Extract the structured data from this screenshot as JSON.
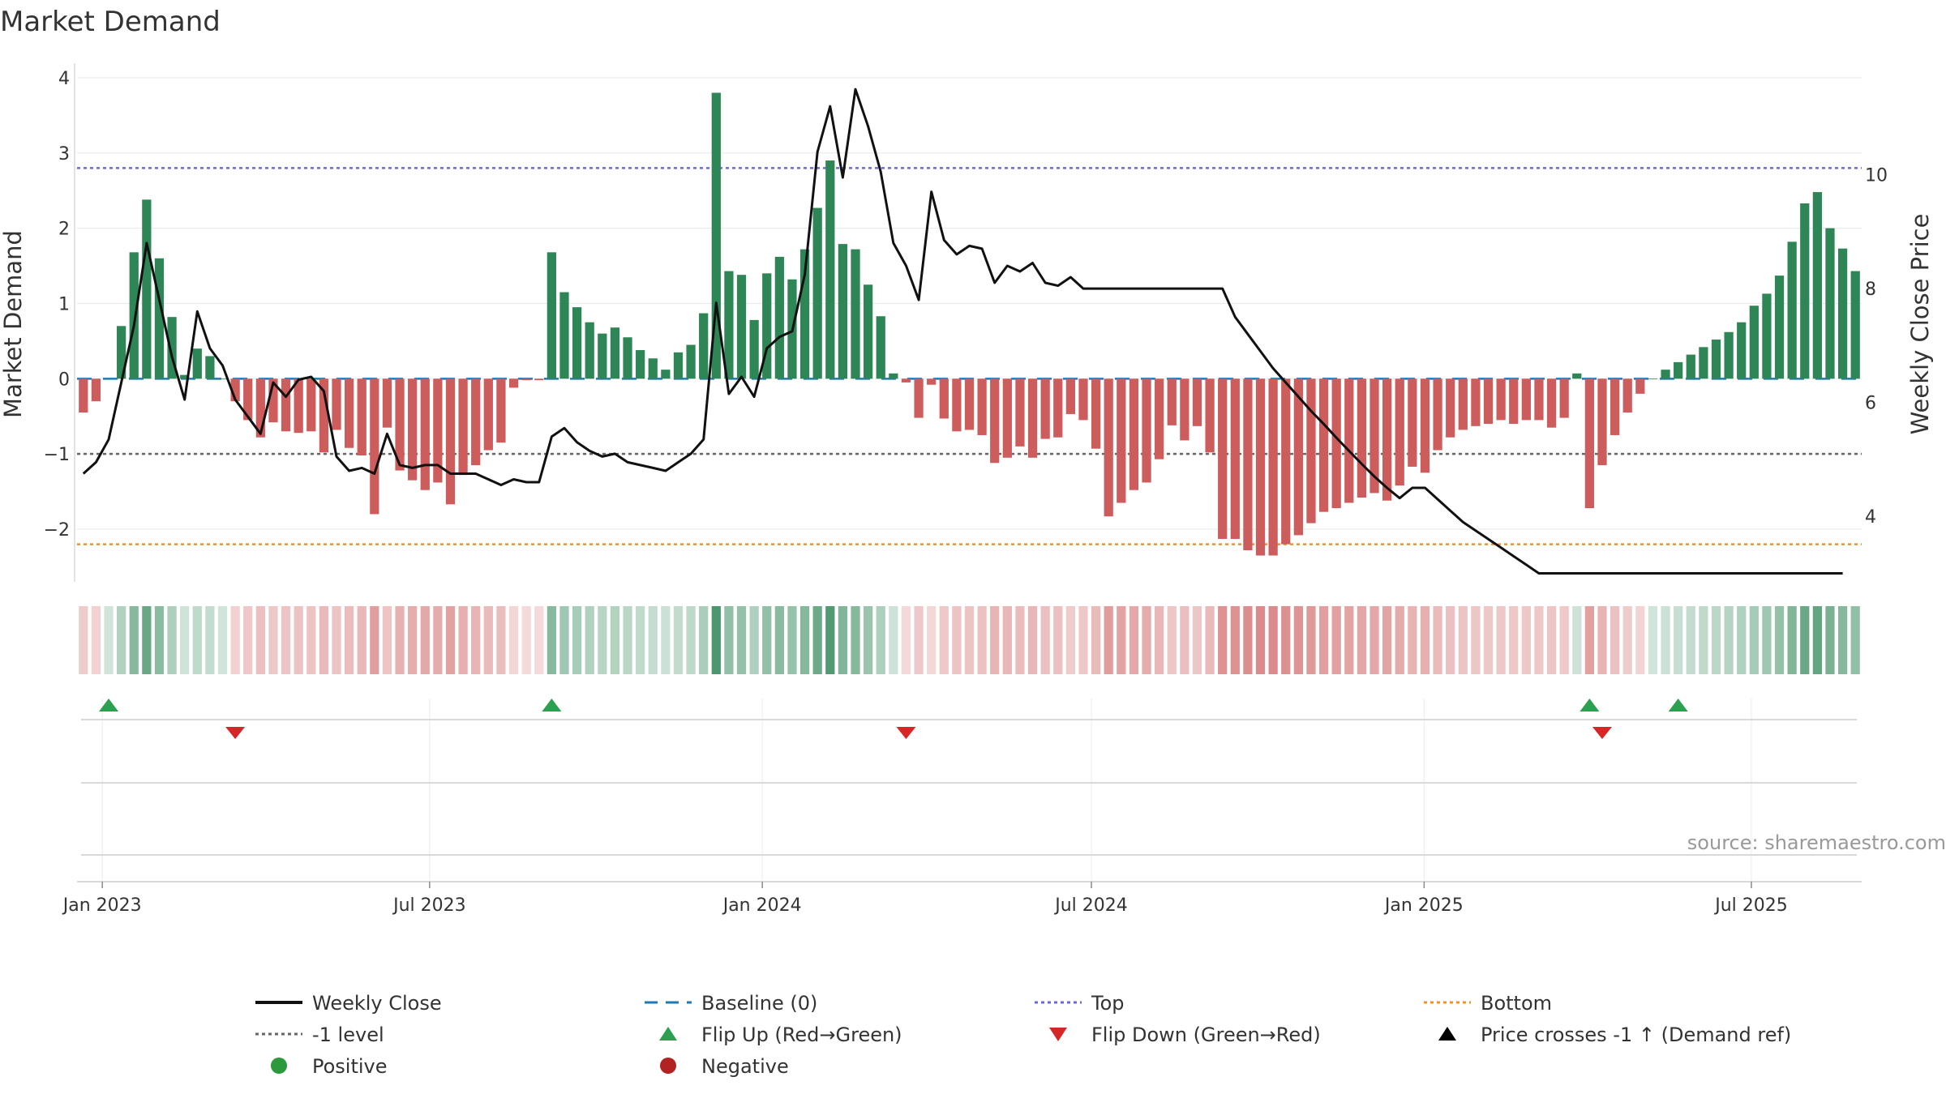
{
  "chart_data": {
    "type": "bar",
    "title": "Market Demand",
    "ylabel": "Market Demand",
    "y2label": "Weekly Close Price",
    "source": "source: sharemaestro.com",
    "start_date": "2022-12-18",
    "ylim": [
      -2.7,
      4.15
    ],
    "y2lim": [
      2.85,
      11.9
    ],
    "yticks": [
      {
        "v": 4,
        "label": "4"
      },
      {
        "v": 3,
        "label": "3"
      },
      {
        "v": 2,
        "label": "2"
      },
      {
        "v": 1,
        "label": "1"
      },
      {
        "v": 0,
        "label": "0"
      },
      {
        "v": -1,
        "label": "−1"
      },
      {
        "v": -2,
        "label": "−2"
      }
    ],
    "y2ticks": [
      {
        "v": 10,
        "label": "10"
      },
      {
        "v": 8,
        "label": "8"
      },
      {
        "v": 6,
        "label": "6"
      },
      {
        "v": 4,
        "label": "4"
      }
    ],
    "xticks": [
      {
        "date": "2023-01-01",
        "label": "Jan 2023"
      },
      {
        "date": "2023-07-01",
        "label": "Jul 2023"
      },
      {
        "date": "2024-01-01",
        "label": "Jan 2024"
      },
      {
        "date": "2024-07-01",
        "label": "Jul 2024"
      },
      {
        "date": "2025-01-01",
        "label": "Jan 2025"
      },
      {
        "date": "2025-07-01",
        "label": "Jul 2025"
      }
    ],
    "reference_lines": {
      "top": 2.8,
      "bottom": -2.2,
      "minus_one": -1,
      "baseline": 0
    },
    "demand": [
      -0.45,
      -0.3,
      0,
      0.7,
      1.68,
      2.38,
      1.6,
      0.82,
      0.05,
      0.4,
      0.3,
      0,
      -0.3,
      -0.55,
      -0.78,
      -0.58,
      -0.7,
      -0.72,
      -0.7,
      -0.98,
      -0.68,
      -0.92,
      -1.02,
      -1.8,
      -0.65,
      -1.22,
      -1.35,
      -1.48,
      -1.38,
      -1.67,
      -1.28,
      -1.15,
      -0.95,
      -0.85,
      -0.12,
      -0.02,
      -0.02,
      1.68,
      1.15,
      0.95,
      0.75,
      0.6,
      0.68,
      0.55,
      0.38,
      0.27,
      0.12,
      0.35,
      0.45,
      0.87,
      3.8,
      1.43,
      1.38,
      0.78,
      1.4,
      1.62,
      1.32,
      1.72,
      2.27,
      2.9,
      1.79,
      1.72,
      1.25,
      0.83,
      0.07,
      -0.05,
      -0.52,
      -0.08,
      -0.53,
      -0.7,
      -0.68,
      -0.75,
      -1.12,
      -1.05,
      -0.9,
      -1.05,
      -0.8,
      -0.78,
      -0.47,
      -0.55,
      -0.93,
      -1.83,
      -1.65,
      -1.48,
      -1.38,
      -1.07,
      -0.62,
      -0.82,
      -0.63,
      -0.98,
      -2.13,
      -2.13,
      -2.28,
      -2.35,
      -2.35,
      -2.2,
      -2.08,
      -1.92,
      -1.77,
      -1.72,
      -1.65,
      -1.58,
      -1.52,
      -1.62,
      -1.42,
      -1.17,
      -1.25,
      -0.95,
      -0.78,
      -0.68,
      -0.63,
      -0.6,
      -0.55,
      -0.6,
      -0.55,
      -0.55,
      -0.65,
      -0.52,
      0.07,
      -1.72,
      -1.15,
      -0.75,
      -0.45,
      -0.2,
      0,
      0.12,
      0.22,
      0.32,
      0.42,
      0.52,
      0.62,
      0.75,
      0.97,
      1.13,
      1.37,
      1.82,
      2.33,
      2.48,
      2.0,
      1.73,
      1.43
    ],
    "weekly_close": [
      {
        "w": 0,
        "v": 4.75
      },
      {
        "w": 1,
        "v": 4.95
      },
      {
        "w": 2,
        "v": 5.35
      },
      {
        "w": 3,
        "v": 6.35
      },
      {
        "w": 4,
        "v": 7.35
      },
      {
        "w": 5,
        "v": 8.8
      },
      {
        "w": 6,
        "v": 7.8
      },
      {
        "w": 7,
        "v": 6.8
      },
      {
        "w": 8,
        "v": 6.05
      },
      {
        "w": 9,
        "v": 7.6
      },
      {
        "w": 10,
        "v": 6.95
      },
      {
        "w": 11,
        "v": 6.65
      },
      {
        "w": 12,
        "v": 6.05
      },
      {
        "w": 13,
        "v": 5.75
      },
      {
        "w": 14,
        "v": 5.45
      },
      {
        "w": 15,
        "v": 6.35
      },
      {
        "w": 16,
        "v": 6.1
      },
      {
        "w": 17,
        "v": 6.4
      },
      {
        "w": 18,
        "v": 6.45
      },
      {
        "w": 19,
        "v": 6.2
      },
      {
        "w": 20,
        "v": 5.05
      },
      {
        "w": 21,
        "v": 4.8
      },
      {
        "w": 22,
        "v": 4.85
      },
      {
        "w": 23,
        "v": 4.75
      },
      {
        "w": 24,
        "v": 5.45
      },
      {
        "w": 25,
        "v": 4.9
      },
      {
        "w": 26,
        "v": 4.85
      },
      {
        "w": 27,
        "v": 4.9
      },
      {
        "w": 28,
        "v": 4.9
      },
      {
        "w": 29,
        "v": 4.75
      },
      {
        "w": 30,
        "v": 4.75
      },
      {
        "w": 31,
        "v": 4.75
      },
      {
        "w": 32,
        "v": 4.65
      },
      {
        "w": 33,
        "v": 4.55
      },
      {
        "w": 34,
        "v": 4.65
      },
      {
        "w": 35,
        "v": 4.6
      },
      {
        "w": 36,
        "v": 4.6
      },
      {
        "w": 37,
        "v": 5.4
      },
      {
        "w": 38,
        "v": 5.55
      },
      {
        "w": 39,
        "v": 5.3
      },
      {
        "w": 40,
        "v": 5.15
      },
      {
        "w": 41,
        "v": 5.05
      },
      {
        "w": 42,
        "v": 5.1
      },
      {
        "w": 43,
        "v": 4.95
      },
      {
        "w": 44,
        "v": 4.9
      },
      {
        "w": 45,
        "v": 4.85
      },
      {
        "w": 46,
        "v": 4.8
      },
      {
        "w": 47,
        "v": 4.95
      },
      {
        "w": 48,
        "v": 5.1
      },
      {
        "w": 49,
        "v": 5.35
      },
      {
        "w": 50,
        "v": 7.75
      },
      {
        "w": 51,
        "v": 6.15
      },
      {
        "w": 52,
        "v": 6.45
      },
      {
        "w": 53,
        "v": 6.1
      },
      {
        "w": 54,
        "v": 6.95
      },
      {
        "w": 55,
        "v": 7.15
      },
      {
        "w": 56,
        "v": 7.25
      },
      {
        "w": 57,
        "v": 8.25
      },
      {
        "w": 58,
        "v": 10.4
      },
      {
        "w": 59,
        "v": 11.2
      },
      {
        "w": 60,
        "v": 9.95
      },
      {
        "w": 61,
        "v": 11.5
      },
      {
        "w": 62,
        "v": 10.85
      },
      {
        "w": 63,
        "v": 10.05
      },
      {
        "w": 64,
        "v": 8.8
      },
      {
        "w": 65,
        "v": 8.4
      },
      {
        "w": 66,
        "v": 7.8
      },
      {
        "w": 67,
        "v": 9.7
      },
      {
        "w": 68,
        "v": 8.85
      },
      {
        "w": 69,
        "v": 8.6
      },
      {
        "w": 70,
        "v": 8.75
      },
      {
        "w": 71,
        "v": 8.7
      },
      {
        "w": 72,
        "v": 8.1
      },
      {
        "w": 73,
        "v": 8.4
      },
      {
        "w": 74,
        "v": 8.3
      },
      {
        "w": 75,
        "v": 8.45
      },
      {
        "w": 76,
        "v": 8.1
      },
      {
        "w": 77,
        "v": 8.05
      },
      {
        "w": 78,
        "v": 8.2
      },
      {
        "w": 79,
        "v": 8.0
      },
      {
        "w": 90,
        "v": 8.0
      },
      {
        "w": 91,
        "v": 7.5
      },
      {
        "w": 92,
        "v": 7.2
      },
      {
        "w": 93,
        "v": 6.9
      },
      {
        "w": 94,
        "v": 6.6
      },
      {
        "w": 95,
        "v": 6.35
      },
      {
        "w": 96,
        "v": 6.1
      },
      {
        "w": 97,
        "v": 5.85
      },
      {
        "w": 98,
        "v": 5.62
      },
      {
        "w": 99,
        "v": 5.38
      },
      {
        "w": 100,
        "v": 5.15
      },
      {
        "w": 101,
        "v": 4.92
      },
      {
        "w": 102,
        "v": 4.7
      },
      {
        "w": 103,
        "v": 4.5
      },
      {
        "w": 104,
        "v": 4.32
      },
      {
        "w": 105,
        "v": 4.5
      },
      {
        "w": 106,
        "v": 4.5
      },
      {
        "w": 107,
        "v": 4.3
      },
      {
        "w": 108,
        "v": 4.1
      },
      {
        "w": 109,
        "v": 3.9
      },
      {
        "w": 110,
        "v": 3.75
      },
      {
        "w": 111,
        "v": 3.6
      },
      {
        "w": 112,
        "v": 3.45
      },
      {
        "w": 113,
        "v": 3.3
      },
      {
        "w": 114,
        "v": 3.15
      },
      {
        "w": 115,
        "v": 3.0
      },
      {
        "w": 139,
        "v": 3.0
      }
    ],
    "flip_up_weeks": [
      2,
      37,
      119,
      126
    ],
    "flip_down_weeks": [
      12,
      65,
      120
    ],
    "legend": [
      "Weekly Close",
      "Baseline (0)",
      "Top",
      "Bottom",
      "-1 level",
      "Flip Up (Red→Green)",
      "Flip Down (Green→Red)",
      "Price crosses -1 ↑ (Demand ref)",
      "Positive",
      "Negative"
    ],
    "colors": {
      "positive": "#2e8555",
      "negative": "#cd5c5c",
      "price": "#111111",
      "baseline": "#1f77b4",
      "top": "#6a6ad8",
      "bottom": "#f09326",
      "minus_one": "#666666",
      "flip_up": "#2ca050",
      "flip_down": "#d62728",
      "positive_dot": "#2a9a3a",
      "negative_dot": "#b22222"
    }
  }
}
